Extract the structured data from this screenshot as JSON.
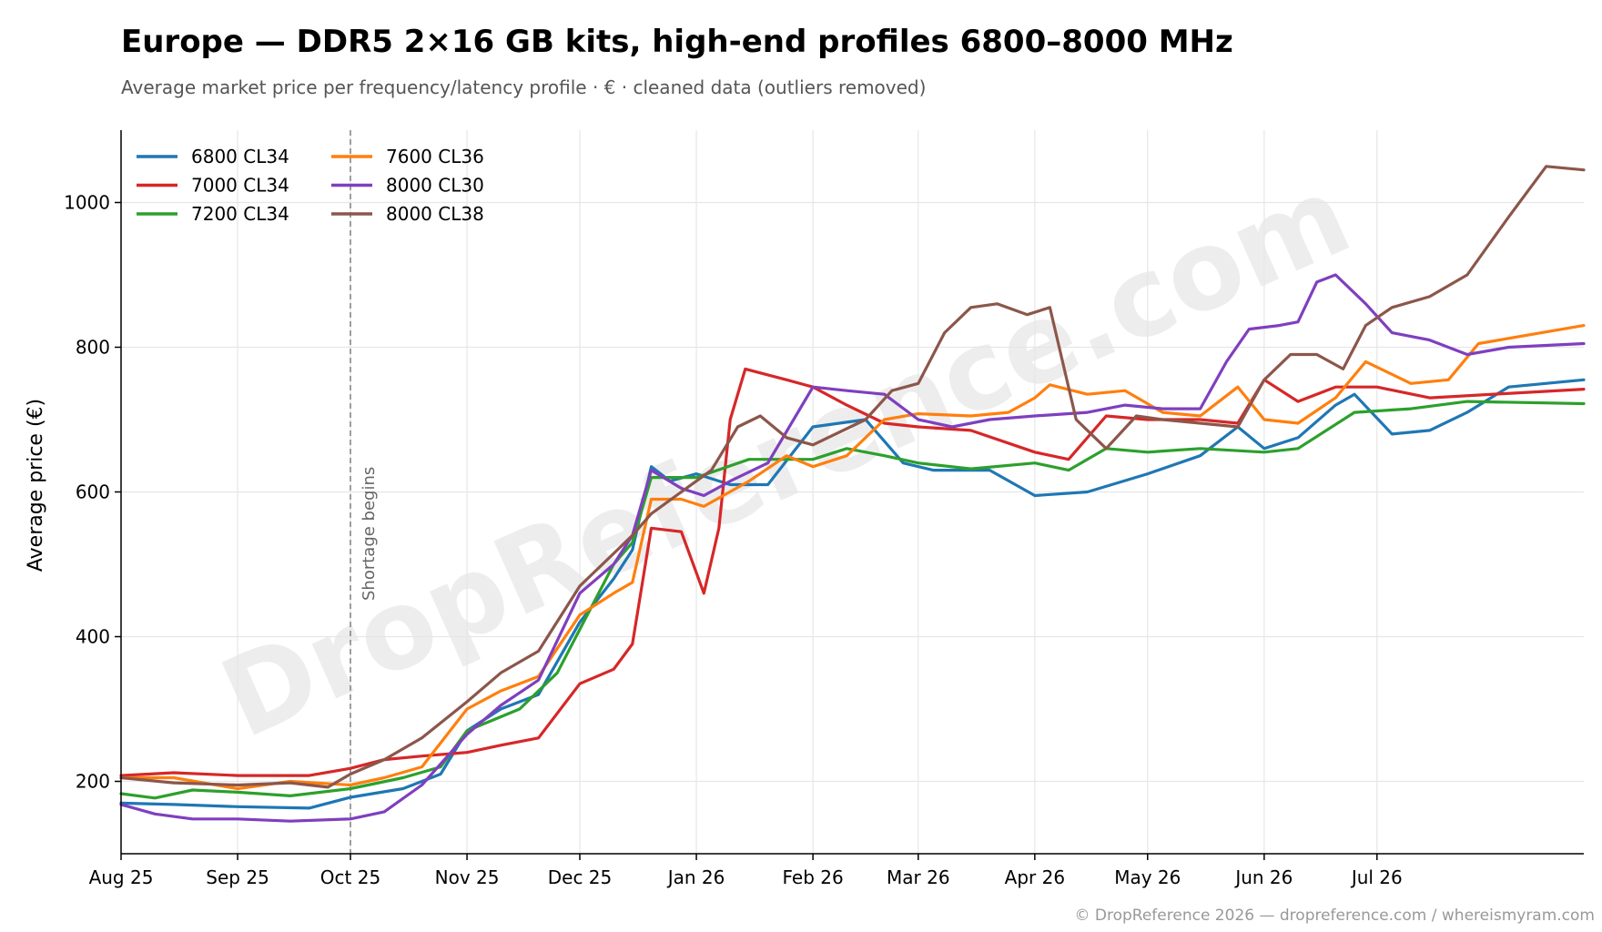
{
  "title": "Europe — DDR5 2×16 GB kits, high-end profiles 6800–8000 MHz",
  "subtitle": "Average market price per frequency/latency profile · € · cleaned data (outliers removed)",
  "footer": "© DropReference 2026 — dropreference.com / whereismyram.com",
  "watermark": "DropReference.com",
  "chart_data": {
    "type": "line",
    "ylabel": "Average price (€)",
    "xlabel": "",
    "ylim": [
      100,
      1100
    ],
    "yticks": [
      200,
      400,
      600,
      800,
      1000
    ],
    "xrange": [
      "2025-08-01",
      "2026-08-25"
    ],
    "xticks": [
      {
        "date": "2025-08-01",
        "label": "Aug 25"
      },
      {
        "date": "2025-09-01",
        "label": "Sep 25"
      },
      {
        "date": "2025-10-01",
        "label": "Oct 25"
      },
      {
        "date": "2025-11-01",
        "label": "Nov 25"
      },
      {
        "date": "2025-12-01",
        "label": "Dec 25"
      },
      {
        "date": "2026-01-01",
        "label": "Jan 26"
      },
      {
        "date": "2026-02-01",
        "label": "Feb 26"
      },
      {
        "date": "2026-03-01",
        "label": "Mar 26"
      },
      {
        "date": "2026-04-01",
        "label": "Apr 26"
      },
      {
        "date": "2026-05-01",
        "label": "May 26"
      },
      {
        "date": "2026-06-01",
        "label": "Jun 26"
      },
      {
        "date": "2026-07-01",
        "label": "Jul 26"
      }
    ],
    "grid": true,
    "legend_position": "top-left",
    "annotation": {
      "date": "2025-10-01",
      "label": "Shortage begins"
    },
    "series": [
      {
        "name": "6800 CL34",
        "color": "#1f77b4",
        "points": [
          [
            "2025-08-01",
            170
          ],
          [
            "2025-08-15",
            168
          ],
          [
            "2025-09-01",
            165
          ],
          [
            "2025-09-20",
            163
          ],
          [
            "2025-10-01",
            178
          ],
          [
            "2025-10-15",
            190
          ],
          [
            "2025-10-25",
            210
          ],
          [
            "2025-11-01",
            270
          ],
          [
            "2025-11-10",
            300
          ],
          [
            "2025-11-20",
            320
          ],
          [
            "2025-12-01",
            420
          ],
          [
            "2025-12-10",
            480
          ],
          [
            "2025-12-15",
            520
          ],
          [
            "2025-12-20",
            635
          ],
          [
            "2025-12-25",
            615
          ],
          [
            "2026-01-01",
            625
          ],
          [
            "2026-01-10",
            610
          ],
          [
            "2026-01-20",
            610
          ],
          [
            "2026-02-01",
            690
          ],
          [
            "2026-02-15",
            700
          ],
          [
            "2026-02-25",
            640
          ],
          [
            "2026-03-05",
            630
          ],
          [
            "2026-03-20",
            630
          ],
          [
            "2026-04-01",
            595
          ],
          [
            "2026-04-15",
            600
          ],
          [
            "2026-05-01",
            625
          ],
          [
            "2026-05-15",
            650
          ],
          [
            "2026-05-25",
            690
          ],
          [
            "2026-06-01",
            660
          ],
          [
            "2026-06-10",
            675
          ],
          [
            "2026-06-20",
            720
          ],
          [
            "2026-06-25",
            735
          ],
          [
            "2026-07-05",
            680
          ],
          [
            "2026-07-15",
            685
          ],
          [
            "2026-07-25",
            710
          ],
          [
            "2026-08-05",
            745
          ],
          [
            "2026-08-25",
            755
          ]
        ]
      },
      {
        "name": "7000 CL34",
        "color": "#d62728",
        "points": [
          [
            "2025-08-01",
            208
          ],
          [
            "2025-08-15",
            212
          ],
          [
            "2025-09-01",
            208
          ],
          [
            "2025-09-20",
            208
          ],
          [
            "2025-10-01",
            218
          ],
          [
            "2025-10-10",
            230
          ],
          [
            "2025-10-20",
            235
          ],
          [
            "2025-11-01",
            240
          ],
          [
            "2025-11-10",
            250
          ],
          [
            "2025-11-20",
            260
          ],
          [
            "2025-12-01",
            335
          ],
          [
            "2025-12-10",
            355
          ],
          [
            "2025-12-15",
            390
          ],
          [
            "2025-12-20",
            550
          ],
          [
            "2025-12-28",
            545
          ],
          [
            "2026-01-03",
            460
          ],
          [
            "2026-01-07",
            550
          ],
          [
            "2026-01-10",
            700
          ],
          [
            "2026-01-14",
            770
          ],
          [
            "2026-01-25",
            755
          ],
          [
            "2026-02-01",
            745
          ],
          [
            "2026-02-10",
            720
          ],
          [
            "2026-02-20",
            695
          ],
          [
            "2026-03-01",
            690
          ],
          [
            "2026-03-15",
            685
          ],
          [
            "2026-04-01",
            655
          ],
          [
            "2026-04-10",
            645
          ],
          [
            "2026-04-20",
            705
          ],
          [
            "2026-05-01",
            700
          ],
          [
            "2026-05-15",
            700
          ],
          [
            "2026-05-25",
            695
          ],
          [
            "2026-06-01",
            755
          ],
          [
            "2026-06-10",
            725
          ],
          [
            "2026-06-20",
            745
          ],
          [
            "2026-07-01",
            745
          ],
          [
            "2026-07-15",
            730
          ],
          [
            "2026-08-25",
            742
          ]
        ]
      },
      {
        "name": "7200 CL34",
        "color": "#2ca02c",
        "points": [
          [
            "2025-08-01",
            183
          ],
          [
            "2025-08-10",
            177
          ],
          [
            "2025-08-20",
            188
          ],
          [
            "2025-09-01",
            185
          ],
          [
            "2025-09-15",
            180
          ],
          [
            "2025-10-01",
            190
          ],
          [
            "2025-10-15",
            205
          ],
          [
            "2025-10-25",
            220
          ],
          [
            "2025-11-01",
            270
          ],
          [
            "2025-11-15",
            300
          ],
          [
            "2025-11-25",
            350
          ],
          [
            "2025-12-01",
            410
          ],
          [
            "2025-12-10",
            500
          ],
          [
            "2025-12-15",
            530
          ],
          [
            "2025-12-20",
            620
          ],
          [
            "2026-01-01",
            620
          ],
          [
            "2026-01-15",
            645
          ],
          [
            "2026-02-01",
            645
          ],
          [
            "2026-02-10",
            660
          ],
          [
            "2026-02-20",
            650
          ],
          [
            "2026-03-01",
            640
          ],
          [
            "2026-03-15",
            632
          ],
          [
            "2026-04-01",
            640
          ],
          [
            "2026-04-10",
            630
          ],
          [
            "2026-04-20",
            660
          ],
          [
            "2026-05-01",
            655
          ],
          [
            "2026-05-15",
            660
          ],
          [
            "2026-06-01",
            655
          ],
          [
            "2026-06-10",
            660
          ],
          [
            "2026-06-25",
            710
          ],
          [
            "2026-07-10",
            715
          ],
          [
            "2026-07-25",
            725
          ],
          [
            "2026-08-25",
            722
          ]
        ]
      },
      {
        "name": "7600 CL36",
        "color": "#ff7f0e",
        "points": [
          [
            "2025-08-01",
            205
          ],
          [
            "2025-08-15",
            205
          ],
          [
            "2025-09-01",
            190
          ],
          [
            "2025-09-15",
            200
          ],
          [
            "2025-10-01",
            195
          ],
          [
            "2025-10-10",
            205
          ],
          [
            "2025-10-20",
            220
          ],
          [
            "2025-11-01",
            300
          ],
          [
            "2025-11-10",
            325
          ],
          [
            "2025-11-20",
            345
          ],
          [
            "2025-12-01",
            430
          ],
          [
            "2025-12-10",
            460
          ],
          [
            "2025-12-15",
            475
          ],
          [
            "2025-12-20",
            590
          ],
          [
            "2025-12-28",
            590
          ],
          [
            "2026-01-03",
            580
          ],
          [
            "2026-01-15",
            615
          ],
          [
            "2026-01-25",
            650
          ],
          [
            "2026-02-01",
            635
          ],
          [
            "2026-02-10",
            650
          ],
          [
            "2026-02-20",
            700
          ],
          [
            "2026-03-01",
            708
          ],
          [
            "2026-03-15",
            705
          ],
          [
            "2026-03-25",
            710
          ],
          [
            "2026-04-01",
            730
          ],
          [
            "2026-04-05",
            748
          ],
          [
            "2026-04-15",
            735
          ],
          [
            "2026-04-25",
            740
          ],
          [
            "2026-05-05",
            710
          ],
          [
            "2026-05-15",
            705
          ],
          [
            "2026-05-25",
            745
          ],
          [
            "2026-06-01",
            700
          ],
          [
            "2026-06-10",
            695
          ],
          [
            "2026-06-20",
            730
          ],
          [
            "2026-06-28",
            780
          ],
          [
            "2026-07-10",
            750
          ],
          [
            "2026-07-20",
            755
          ],
          [
            "2026-07-28",
            805
          ],
          [
            "2026-08-25",
            830
          ]
        ]
      },
      {
        "name": "8000 CL30",
        "color": "#7f3fbf",
        "points": [
          [
            "2025-08-01",
            168
          ],
          [
            "2025-08-10",
            155
          ],
          [
            "2025-08-20",
            148
          ],
          [
            "2025-09-01",
            148
          ],
          [
            "2025-09-15",
            145
          ],
          [
            "2025-10-01",
            148
          ],
          [
            "2025-10-10",
            158
          ],
          [
            "2025-10-20",
            195
          ],
          [
            "2025-11-01",
            265
          ],
          [
            "2025-11-10",
            305
          ],
          [
            "2025-11-20",
            340
          ],
          [
            "2025-12-01",
            460
          ],
          [
            "2025-12-10",
            500
          ],
          [
            "2025-12-15",
            540
          ],
          [
            "2025-12-20",
            630
          ],
          [
            "2025-12-28",
            605
          ],
          [
            "2026-01-03",
            595
          ],
          [
            "2026-01-10",
            615
          ],
          [
            "2026-01-20",
            640
          ],
          [
            "2026-02-01",
            745
          ],
          [
            "2026-02-10",
            740
          ],
          [
            "2026-02-20",
            735
          ],
          [
            "2026-03-01",
            700
          ],
          [
            "2026-03-10",
            690
          ],
          [
            "2026-03-20",
            700
          ],
          [
            "2026-04-01",
            705
          ],
          [
            "2026-04-15",
            710
          ],
          [
            "2026-04-25",
            720
          ],
          [
            "2026-05-05",
            715
          ],
          [
            "2026-05-15",
            715
          ],
          [
            "2026-05-22",
            780
          ],
          [
            "2026-05-28",
            825
          ],
          [
            "2026-06-05",
            830
          ],
          [
            "2026-06-10",
            835
          ],
          [
            "2026-06-15",
            890
          ],
          [
            "2026-06-20",
            900
          ],
          [
            "2026-06-28",
            860
          ],
          [
            "2026-07-05",
            820
          ],
          [
            "2026-07-15",
            810
          ],
          [
            "2026-07-25",
            790
          ],
          [
            "2026-08-05",
            800
          ],
          [
            "2026-08-25",
            805
          ]
        ]
      },
      {
        "name": "8000 CL38",
        "color": "#8c564b",
        "points": [
          [
            "2025-08-01",
            205
          ],
          [
            "2025-08-15",
            198
          ],
          [
            "2025-09-01",
            195
          ],
          [
            "2025-09-15",
            198
          ],
          [
            "2025-09-25",
            192
          ],
          [
            "2025-10-01",
            210
          ],
          [
            "2025-10-10",
            230
          ],
          [
            "2025-10-20",
            260
          ],
          [
            "2025-11-01",
            310
          ],
          [
            "2025-11-10",
            350
          ],
          [
            "2025-11-20",
            380
          ],
          [
            "2025-12-01",
            470
          ],
          [
            "2025-12-10",
            515
          ],
          [
            "2025-12-15",
            540
          ],
          [
            "2025-12-20",
            570
          ],
          [
            "2025-12-28",
            600
          ],
          [
            "2026-01-05",
            630
          ],
          [
            "2026-01-12",
            690
          ],
          [
            "2026-01-18",
            705
          ],
          [
            "2026-01-25",
            675
          ],
          [
            "2026-02-01",
            665
          ],
          [
            "2026-02-15",
            700
          ],
          [
            "2026-02-22",
            740
          ],
          [
            "2026-03-01",
            750
          ],
          [
            "2026-03-08",
            820
          ],
          [
            "2026-03-15",
            855
          ],
          [
            "2026-03-22",
            860
          ],
          [
            "2026-03-30",
            845
          ],
          [
            "2026-04-05",
            855
          ],
          [
            "2026-04-12",
            700
          ],
          [
            "2026-04-20",
            660
          ],
          [
            "2026-04-28",
            705
          ],
          [
            "2026-05-05",
            700
          ],
          [
            "2026-05-15",
            695
          ],
          [
            "2026-05-25",
            690
          ],
          [
            "2026-06-01",
            755
          ],
          [
            "2026-06-08",
            790
          ],
          [
            "2026-06-15",
            790
          ],
          [
            "2026-06-22",
            770
          ],
          [
            "2026-06-28",
            830
          ],
          [
            "2026-07-05",
            855
          ],
          [
            "2026-07-15",
            870
          ],
          [
            "2026-07-25",
            900
          ],
          [
            "2026-08-05",
            980
          ],
          [
            "2026-08-15",
            1050
          ],
          [
            "2026-08-25",
            1045
          ]
        ]
      }
    ]
  }
}
